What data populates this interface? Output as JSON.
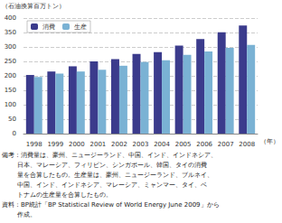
{
  "chart_data": {
    "type": "bar",
    "ylabel": "（石油換算百万トン）",
    "xlabel": "（年）",
    "categories": [
      "1998",
      "1999",
      "2000",
      "2001",
      "2002",
      "2003",
      "2004",
      "2005",
      "2006",
      "2007",
      "2008"
    ],
    "series": [
      {
        "name": "消費",
        "color": "#3b3b8c",
        "values": [
          203,
          215,
          233,
          250,
          258,
          276,
          282,
          305,
          327,
          351,
          374
        ]
      },
      {
        "name": "生産",
        "color": "#7ab2d4",
        "values": [
          196,
          208,
          215,
          221,
          235,
          248,
          254,
          273,
          284,
          297,
          307
        ]
      }
    ],
    "ylim": [
      0,
      400
    ],
    "yticks": [
      0,
      50,
      100,
      150,
      200,
      250,
      300,
      350,
      400
    ],
    "grid": true,
    "legend": "upper left",
    "annotations": [
      [
        "備考：消費量は、豪州、ニュージーランド、中国、インド、インドネシア、",
        "日本、マレーシア、フィリピン、シンガポール、韓国、タイの消費",
        "量を合算したもの。生産量は、豪州、ニュージーランド、ブルネイ、",
        "中国、インド、インドネシア、マレーシア、ミャンマー、タイ、ベ",
        "トナムの生産量を合算したもの。"
      ],
      [
        "資料：BP統計「BP Statistical Review of World Energy June 2009」から",
        "作成。"
      ]
    ]
  }
}
